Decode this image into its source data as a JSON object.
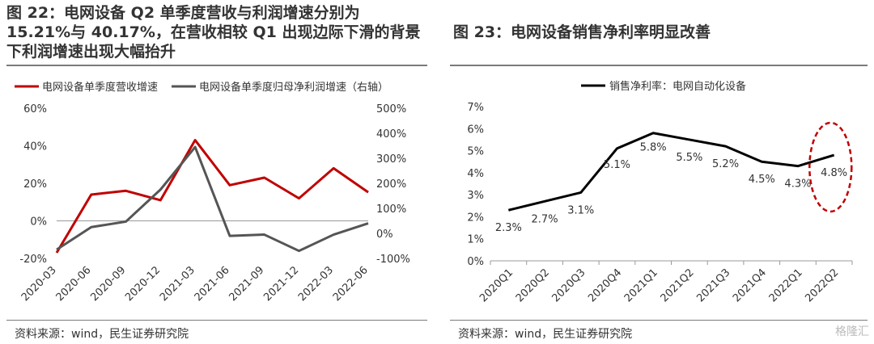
{
  "left": {
    "title": "图 22：电网设备 Q2 单季度营收与利润增速分别为 15.21%与 40.17%，在营收相较 Q1 出现边际下滑的背景下利润增速出现大幅抬升",
    "source": "资料来源：wind，民生证券研究院",
    "legend": [
      "电网设备单季度营收增速",
      "电网设备单季度归母净利润增速（右轴）"
    ]
  },
  "right": {
    "title": "图 23：电网设备销售净利率明显改善",
    "source": "资料来源：wind，民生证券研究院",
    "legend": [
      "销售净利率：电网自动化设备"
    ]
  },
  "watermark": "格隆汇",
  "chart_data": [
    {
      "type": "line",
      "categories": [
        "2020-03",
        "2020-06",
        "2020-09",
        "2020-12",
        "2021-03",
        "2021-06",
        "2021-09",
        "2021-12",
        "2022-03",
        "2022-06"
      ],
      "series": [
        {
          "name": "电网设备单季度营收增速",
          "axis": "left",
          "color": "#c00000",
          "values": [
            -17,
            14,
            16,
            11,
            43,
            19,
            23,
            12,
            28,
            15.21
          ]
        },
        {
          "name": "电网设备单季度归母净利润增速（右轴）",
          "axis": "right",
          "color": "#555555",
          "values": [
            -65,
            25,
            47,
            175,
            345,
            -10,
            -5,
            -70,
            -5,
            40.17
          ]
        }
      ],
      "y_left": {
        "min": -20,
        "max": 60,
        "step": 20,
        "ticks": [
          "-20%",
          "0%",
          "20%",
          "40%",
          "60%"
        ]
      },
      "y_right": {
        "min": -100,
        "max": 500,
        "step": 100,
        "ticks": [
          "-100%",
          "0%",
          "100%",
          "200%",
          "300%",
          "400%",
          "500%"
        ]
      },
      "legend_position": "top"
    },
    {
      "type": "line",
      "categories": [
        "2020Q1",
        "2020Q2",
        "2020Q3",
        "2020Q4",
        "2021Q1",
        "2021Q2",
        "2021Q3",
        "2021Q4",
        "2022Q1",
        "2022Q2"
      ],
      "series": [
        {
          "name": "销售净利率：电网自动化设备",
          "color": "#000000",
          "values": [
            2.3,
            2.7,
            3.1,
            5.1,
            5.8,
            5.5,
            5.2,
            4.5,
            4.3,
            4.8
          ],
          "labels": [
            "2.3%",
            "2.7%",
            "3.1%",
            "5.1%",
            "5.8%",
            "5.5%",
            "5.2%",
            "4.5%",
            "4.3%",
            "4.8%"
          ]
        }
      ],
      "y": {
        "min": 0,
        "max": 7,
        "step": 1,
        "ticks": [
          "0%",
          "1%",
          "2%",
          "3%",
          "4%",
          "5%",
          "6%",
          "7%"
        ]
      },
      "legend_position": "top",
      "highlight": {
        "from_index": 8,
        "to_index": 9,
        "style": "red-dashed-ellipse"
      }
    }
  ]
}
